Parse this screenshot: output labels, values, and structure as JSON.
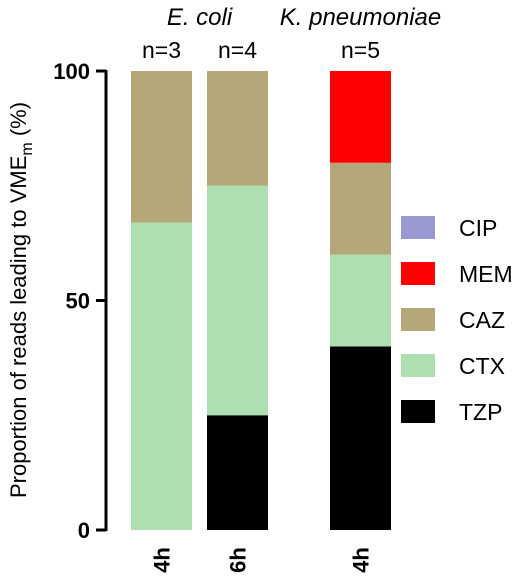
{
  "chart_data": {
    "type": "bar",
    "stacked": true,
    "ylabel": "Proportion of reads leading to VME",
    "ylabel_subscript": "m",
    "ylabel_suffix": " (%)",
    "ylim": [
      0,
      100
    ],
    "yticks": [
      0,
      50,
      100
    ],
    "categories": [
      "4h",
      "6h",
      "4h"
    ],
    "groups": [
      {
        "title": "E. coli",
        "bars": [
          0,
          1
        ]
      },
      {
        "title": "K. pneumoniae",
        "bars": [
          2
        ]
      }
    ],
    "n_labels": [
      "n=3",
      "n=4",
      "n=5"
    ],
    "series": [
      {
        "name": "TZP",
        "color": "#000000",
        "values": [
          0,
          25,
          40
        ]
      },
      {
        "name": "CTX",
        "color": "#aedfb0",
        "values": [
          67,
          50,
          20
        ]
      },
      {
        "name": "CAZ",
        "color": "#b4a87b",
        "values": [
          33,
          25,
          20
        ]
      },
      {
        "name": "MEM",
        "color": "#ff0000",
        "values": [
          0,
          0,
          20
        ]
      },
      {
        "name": "CIP",
        "color": "#9999d1",
        "values": [
          0,
          0,
          0
        ]
      }
    ],
    "legend": [
      "CIP",
      "MEM",
      "CAZ",
      "CTX",
      "TZP"
    ],
    "legend_position": "right",
    "grid": false
  }
}
